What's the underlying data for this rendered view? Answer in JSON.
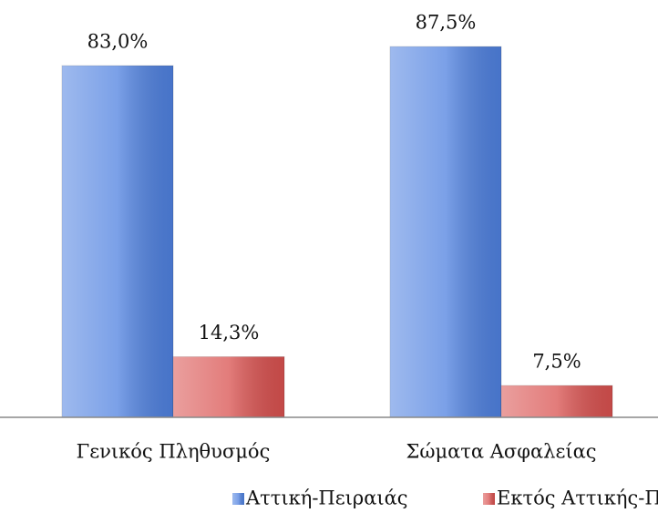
{
  "chart_data": {
    "type": "bar",
    "categories": [
      "Γενικός Πληθυσμός",
      "Σώματα Ασφαλείας"
    ],
    "series": [
      {
        "name": "Αττική-Πειραιάς",
        "color": "#4f81e0",
        "values": [
          83.0,
          87.5
        ],
        "value_labels": [
          "83,0%",
          "87,5%"
        ]
      },
      {
        "name": "Εκτός Αττικής-Πειραιά",
        "color": "#d9514f",
        "values": [
          14.3,
          7.5
        ],
        "value_labels": [
          "14,3%",
          "7,5%"
        ]
      }
    ],
    "legend": "bottom"
  }
}
